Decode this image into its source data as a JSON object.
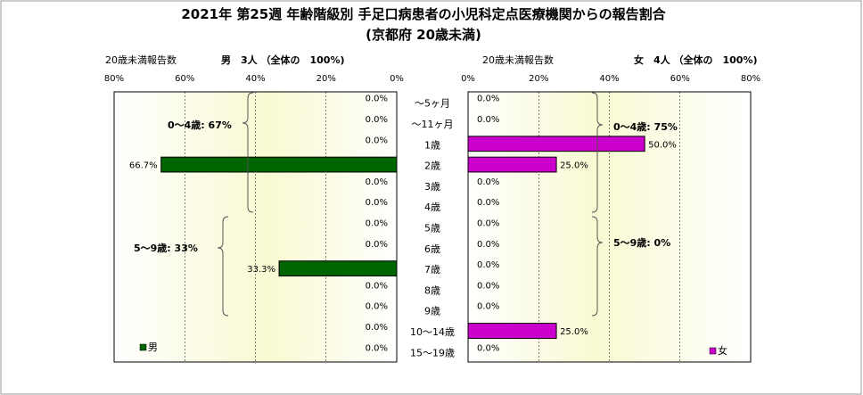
{
  "chart_data": {
    "type": "bar",
    "title": "2021年 第25週 年齢階級別 手足口病患者の小児科定点医療機関からの報告割合",
    "subtitle": "(京都府 20歳未満)",
    "categories": [
      "～5ヶ月",
      "～11ヶ月",
      "1歳",
      "2歳",
      "3歳",
      "4歳",
      "5歳",
      "6歳",
      "7歳",
      "8歳",
      "9歳",
      "10～14歳",
      "15～19歳"
    ],
    "xlim": [
      0,
      80
    ],
    "ticks": [
      "80%",
      "60%",
      "40%",
      "20%",
      "0%"
    ],
    "ticks_right": [
      "0%",
      "20%",
      "40%",
      "60%",
      "80%"
    ],
    "male": {
      "header": "20歳未満報告数",
      "summary": "男　3人 （全体の　100%)",
      "legend": "男",
      "color": "#006400",
      "values": [
        0,
        0,
        0,
        66.7,
        0,
        0,
        0,
        0,
        33.3,
        0,
        0,
        0,
        0
      ],
      "labels": [
        "0.0%",
        "0.0%",
        "0.0%",
        "66.7%",
        "0.0%",
        "0.0%",
        "0.0%",
        "0.0%",
        "33.3%",
        "0.0%",
        "0.0%",
        "0.0%",
        "0.0%"
      ],
      "group_0_4": "0～4歳: 67%",
      "group_5_9": "5～9歳: 33%"
    },
    "female": {
      "header": "20歳未満報告数",
      "summary": "女　4人 （全体の　100%)",
      "legend": "女",
      "color": "#CC00CC",
      "values": [
        0,
        0,
        50.0,
        25.0,
        0,
        0,
        0,
        0,
        0,
        0,
        0,
        25.0,
        0
      ],
      "labels": [
        "0.0%",
        "0.0%",
        "50.0%",
        "25.0%",
        "0.0%",
        "0.0%",
        "0.0%",
        "0.0%",
        "0.0%",
        "0.0%",
        "0.0%",
        "25.0%",
        "0.0%"
      ],
      "group_0_4": "0～4歳: 75%",
      "group_5_9": "5～9歳: 0%"
    }
  }
}
